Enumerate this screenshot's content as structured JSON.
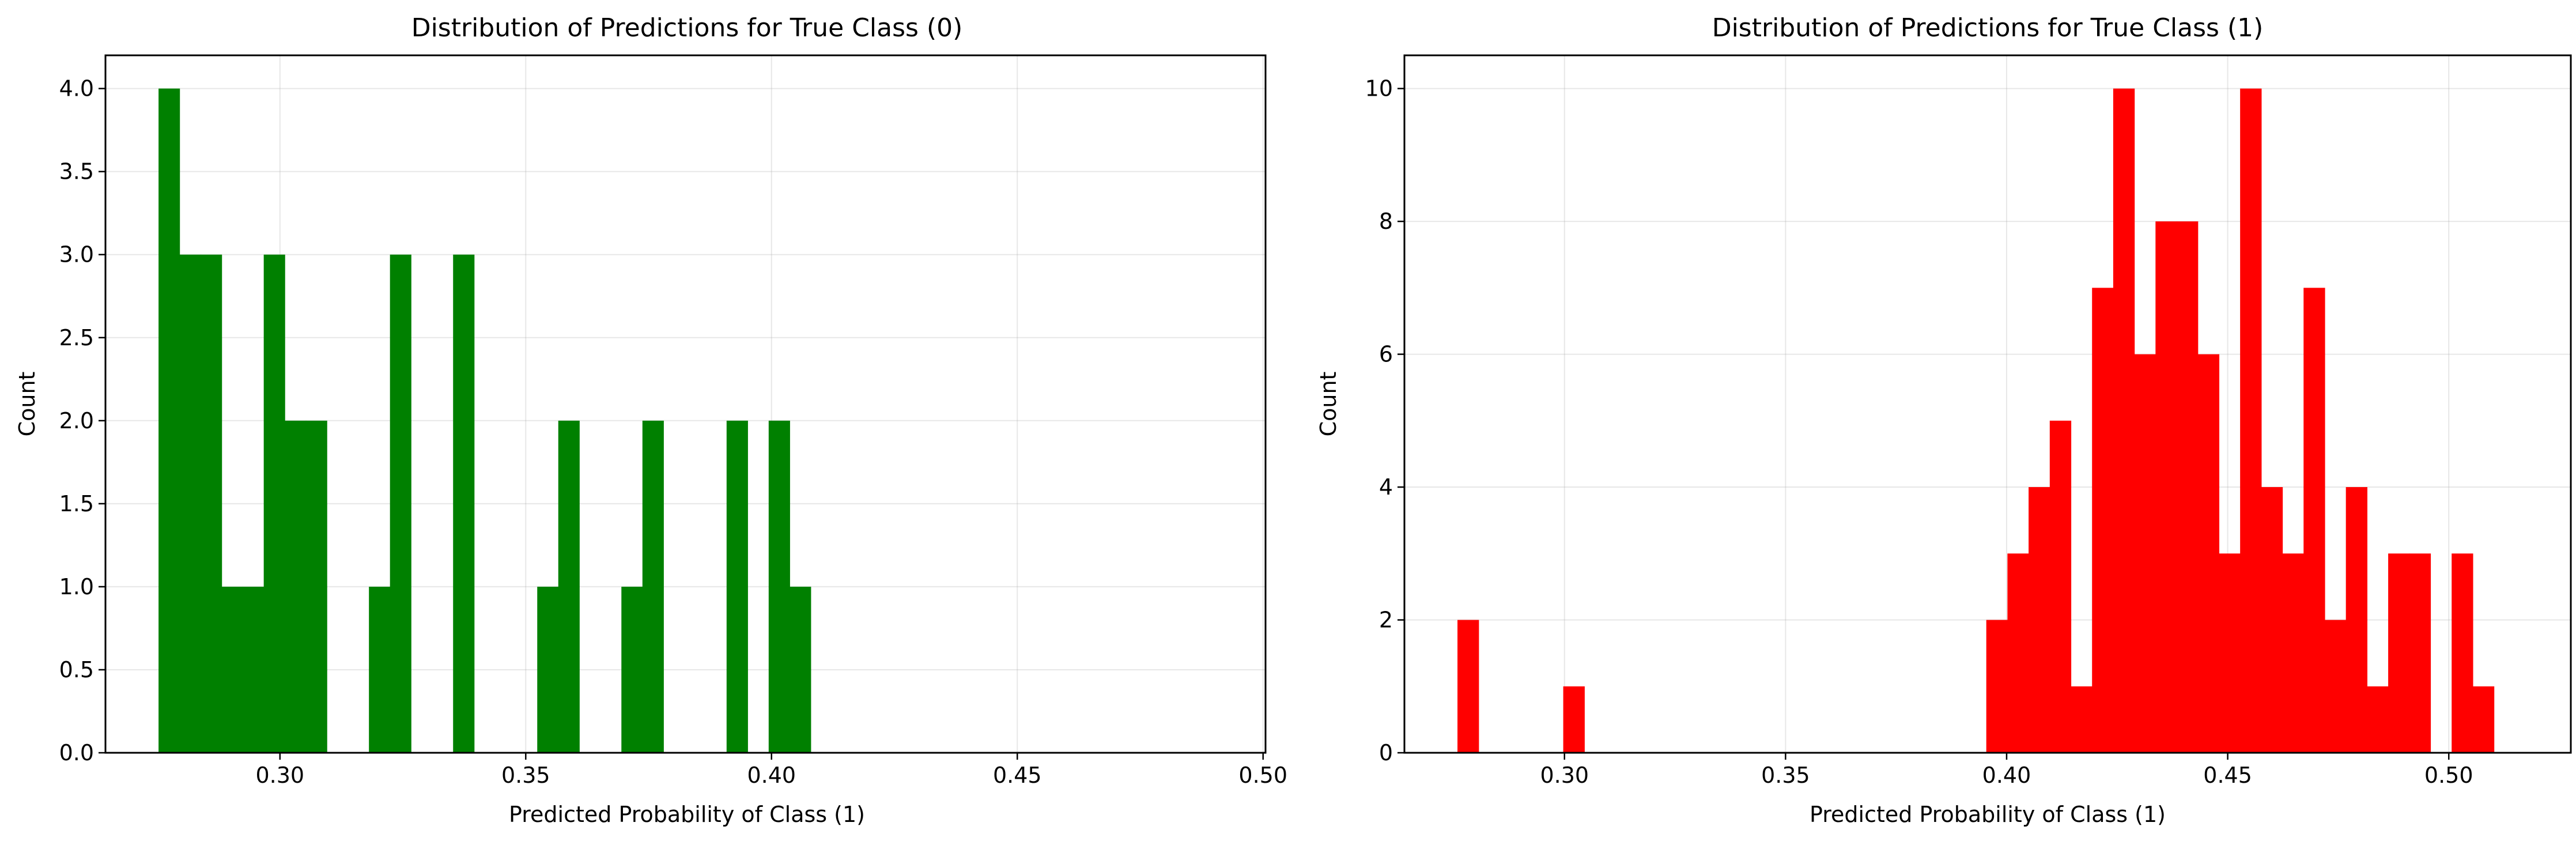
{
  "chart_data": [
    {
      "type": "bar",
      "title": "Distribution of Predictions for True Class (0)",
      "xlabel": "Predicted Probability of Class (1)",
      "ylabel": "Count",
      "color": "#008000",
      "xlim": [
        0.2645,
        0.5005
      ],
      "ylim": [
        0,
        4.2
      ],
      "xticks": [
        "0.30",
        "0.35",
        "0.40",
        "0.45",
        "0.50"
      ],
      "xtick_values": [
        0.3,
        0.35,
        0.4,
        0.45,
        0.5
      ],
      "yticks": [
        "0.0",
        "0.5",
        "1.0",
        "1.5",
        "2.0",
        "2.5",
        "3.0",
        "3.5",
        "4.0"
      ],
      "ytick_values": [
        0,
        0.5,
        1,
        1.5,
        2,
        2.5,
        3,
        3.5,
        4
      ],
      "grid": true,
      "bin_start": 0.2753,
      "bin_width": 0.00428,
      "values": [
        4,
        3,
        3,
        1,
        1,
        3,
        2,
        2,
        0,
        0,
        1,
        3,
        0,
        0,
        3,
        0,
        0,
        0,
        1,
        2,
        0,
        0,
        1,
        2,
        0,
        0,
        0,
        2,
        0,
        2,
        1,
        0,
        0,
        0,
        0,
        0,
        0,
        0,
        0,
        0,
        0,
        0,
        0,
        0,
        0,
        0,
        0,
        0,
        0,
        0,
        0,
        0,
        0,
        0,
        0,
        0,
        0,
        0,
        0,
        0
      ]
    },
    {
      "type": "bar",
      "title": "Distribution of Predictions for True Class (1)",
      "xlabel": "Predicted Probability of Class (1)",
      "ylabel": "Count",
      "color": "#ff0000",
      "xlim": [
        0.2638,
        0.5276
      ],
      "ylim": [
        0,
        10.5
      ],
      "xticks": [
        "0.30",
        "0.35",
        "0.40",
        "0.45",
        "0.50"
      ],
      "xtick_values": [
        0.3,
        0.35,
        0.4,
        0.45,
        0.5
      ],
      "yticks": [
        "0",
        "2",
        "4",
        "6",
        "8",
        "10"
      ],
      "ytick_values": [
        0,
        2,
        4,
        6,
        8,
        10
      ],
      "grid": true,
      "bin_start": 0.2758,
      "bin_width": 0.004784,
      "values": [
        2,
        0,
        0,
        0,
        0,
        1,
        0,
        0,
        0,
        0,
        0,
        0,
        0,
        0,
        0,
        0,
        0,
        0,
        0,
        0,
        0,
        0,
        0,
        0,
        0,
        2,
        3,
        4,
        5,
        1,
        7,
        10,
        6,
        8,
        8,
        6,
        3,
        10,
        4,
        3,
        7,
        2,
        4,
        1,
        3,
        3,
        0,
        3,
        1,
        0
      ]
    }
  ]
}
